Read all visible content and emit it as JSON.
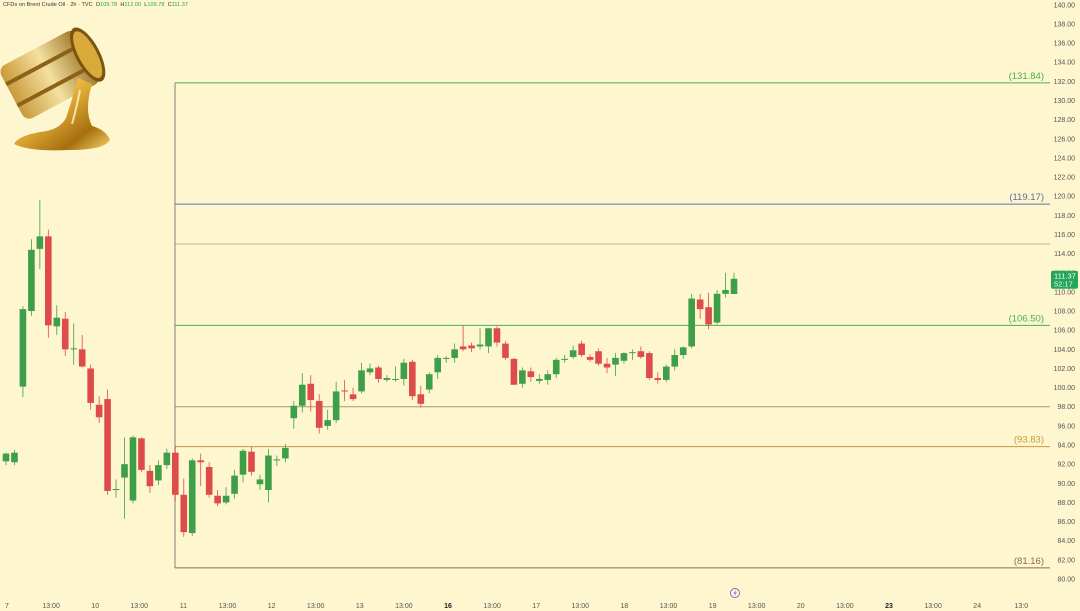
{
  "header": {
    "symbol": "CFDs on Brent Crude Oil · 2h · TVC",
    "o_label": "O",
    "o": "109.78",
    "h_label": "H",
    "h": "112.00",
    "l_label": "L",
    "l": "109.78",
    "c_label": "C",
    "c": "111.37"
  },
  "price_tag": {
    "price": "111.37",
    "timer": "52:17",
    "color": "#26a65b"
  },
  "chart_data": {
    "type": "candlestick",
    "title": "CFDs on Brent Crude Oil · 2h · TVC",
    "y_ticks": [
      "80.00",
      "82.00",
      "84.00",
      "86.00",
      "88.00",
      "90.00",
      "92.00",
      "94.00",
      "96.00",
      "98.00",
      "100.00",
      "102.00",
      "104.00",
      "106.00",
      "108.00",
      "110.00",
      "112.00",
      "114.00",
      "116.00",
      "118.00",
      "120.00",
      "122.00",
      "124.00",
      "126.00",
      "128.00",
      "130.00",
      "132.00",
      "134.00",
      "136.00",
      "138.00",
      "140.00"
    ],
    "ylim": [
      80,
      140.5
    ],
    "x_ticks": [
      {
        "label": "7",
        "bold": false
      },
      {
        "label": "13:00",
        "bold": false
      },
      {
        "label": "10",
        "bold": false
      },
      {
        "label": "13:00",
        "bold": false
      },
      {
        "label": "11",
        "bold": false
      },
      {
        "label": "13:00",
        "bold": false
      },
      {
        "label": "12",
        "bold": false
      },
      {
        "label": "13:00",
        "bold": false
      },
      {
        "label": "13",
        "bold": false
      },
      {
        "label": "13:00",
        "bold": false
      },
      {
        "label": "16",
        "bold": true
      },
      {
        "label": "13:00",
        "bold": false
      },
      {
        "label": "17",
        "bold": false
      },
      {
        "label": "13:00",
        "bold": false
      },
      {
        "label": "18",
        "bold": false
      },
      {
        "label": "13:00",
        "bold": false
      },
      {
        "label": "19",
        "bold": false
      },
      {
        "label": "13:00",
        "bold": false
      },
      {
        "label": "20",
        "bold": false
      },
      {
        "label": "13:00",
        "bold": false
      },
      {
        "label": "23",
        "bold": true
      },
      {
        "label": "13:00",
        "bold": false
      },
      {
        "label": "24",
        "bold": false
      },
      {
        "label": "13:0",
        "bold": false
      }
    ],
    "levels": [
      {
        "value": 131.84,
        "label": "(131.84)",
        "color": "#4caf50",
        "show_label": true
      },
      {
        "value": 119.17,
        "label": "(119.17)",
        "color": "#5b6fa6",
        "show_label": true
      },
      {
        "value": 115.0,
        "label": "",
        "color": "#b8b48a",
        "show_label": false
      },
      {
        "value": 106.5,
        "label": "(106.50)",
        "color": "#4caf50",
        "show_label": true
      },
      {
        "value": 98.0,
        "label": "",
        "color": "#9e9e7a",
        "show_label": false
      },
      {
        "value": 93.83,
        "label": "(93.83)",
        "color": "#c89a3c",
        "show_label": true
      },
      {
        "value": 81.16,
        "label": "(81.16)",
        "color": "#8b6a4a",
        "show_label": true
      }
    ],
    "up_color": "#3f9e48",
    "down_color": "#de4b4b",
    "candles": [
      {
        "o": 92.3,
        "h": 93.2,
        "l": 91.9,
        "c": 93.1
      },
      {
        "o": 92.2,
        "h": 93.5,
        "l": 91.9,
        "c": 93.2
      },
      {
        "o": 100.1,
        "h": 108.5,
        "l": 99.0,
        "c": 108.2
      },
      {
        "o": 108.0,
        "h": 115.5,
        "l": 107.5,
        "c": 114.4
      },
      {
        "o": 114.5,
        "h": 119.6,
        "l": 112.4,
        "c": 115.8
      },
      {
        "o": 115.8,
        "h": 116.5,
        "l": 105.2,
        "c": 106.5
      },
      {
        "o": 106.4,
        "h": 108.6,
        "l": 105.5,
        "c": 107.3
      },
      {
        "o": 107.2,
        "h": 107.9,
        "l": 103.3,
        "c": 104.0
      },
      {
        "o": 104.0,
        "h": 106.7,
        "l": 102.4,
        "c": 104.1
      },
      {
        "o": 104.0,
        "h": 105.5,
        "l": 102.1,
        "c": 102.2
      },
      {
        "o": 102.0,
        "h": 102.4,
        "l": 97.7,
        "c": 98.4
      },
      {
        "o": 98.2,
        "h": 99.1,
        "l": 96.3,
        "c": 96.9
      },
      {
        "o": 98.8,
        "h": 99.8,
        "l": 88.8,
        "c": 89.2
      },
      {
        "o": 89.3,
        "h": 90.4,
        "l": 88.5,
        "c": 89.4
      },
      {
        "o": 90.6,
        "h": 94.8,
        "l": 86.3,
        "c": 92.0
      },
      {
        "o": 88.2,
        "h": 95.0,
        "l": 87.9,
        "c": 94.8
      },
      {
        "o": 94.7,
        "h": 94.8,
        "l": 91.2,
        "c": 91.4
      },
      {
        "o": 91.3,
        "h": 91.9,
        "l": 89.0,
        "c": 89.7
      },
      {
        "o": 90.3,
        "h": 92.4,
        "l": 89.8,
        "c": 91.9
      },
      {
        "o": 91.9,
        "h": 93.6,
        "l": 91.5,
        "c": 93.2
      },
      {
        "o": 93.2,
        "h": 93.9,
        "l": 88.1,
        "c": 88.8
      },
      {
        "o": 88.8,
        "h": 90.5,
        "l": 84.4,
        "c": 84.9
      },
      {
        "o": 84.8,
        "h": 92.6,
        "l": 84.5,
        "c": 92.4
      },
      {
        "o": 92.4,
        "h": 93.1,
        "l": 89.7,
        "c": 92.2
      },
      {
        "o": 91.7,
        "h": 92.2,
        "l": 88.5,
        "c": 88.8
      },
      {
        "o": 88.7,
        "h": 89.3,
        "l": 87.6,
        "c": 87.9
      },
      {
        "o": 88.0,
        "h": 89.6,
        "l": 87.8,
        "c": 88.7
      },
      {
        "o": 88.9,
        "h": 91.4,
        "l": 88.4,
        "c": 90.8
      },
      {
        "o": 90.9,
        "h": 93.6,
        "l": 90.1,
        "c": 93.4
      },
      {
        "o": 93.3,
        "h": 93.8,
        "l": 90.8,
        "c": 91.2
      },
      {
        "o": 89.9,
        "h": 90.9,
        "l": 89.3,
        "c": 90.4
      },
      {
        "o": 89.3,
        "h": 93.6,
        "l": 88.0,
        "c": 92.9
      },
      {
        "o": 92.4,
        "h": 92.9,
        "l": 91.8,
        "c": 92.5
      },
      {
        "o": 92.6,
        "h": 94.1,
        "l": 92.2,
        "c": 93.7
      },
      {
        "o": 96.8,
        "h": 98.6,
        "l": 95.7,
        "c": 98.1
      },
      {
        "o": 98.1,
        "h": 101.5,
        "l": 97.4,
        "c": 100.3
      },
      {
        "o": 100.4,
        "h": 101.3,
        "l": 97.5,
        "c": 98.7
      },
      {
        "o": 98.6,
        "h": 99.3,
        "l": 95.2,
        "c": 95.8
      },
      {
        "o": 96.0,
        "h": 97.7,
        "l": 95.6,
        "c": 96.6
      },
      {
        "o": 96.6,
        "h": 100.6,
        "l": 96.3,
        "c": 99.6
      },
      {
        "o": 99.7,
        "h": 100.8,
        "l": 98.6,
        "c": 99.6
      },
      {
        "o": 99.3,
        "h": 100.0,
        "l": 98.6,
        "c": 98.8
      },
      {
        "o": 99.6,
        "h": 102.6,
        "l": 99.4,
        "c": 101.8
      },
      {
        "o": 101.6,
        "h": 102.5,
        "l": 101.3,
        "c": 102.0
      },
      {
        "o": 102.1,
        "h": 102.3,
        "l": 100.5,
        "c": 100.9
      },
      {
        "o": 100.8,
        "h": 101.3,
        "l": 100.6,
        "c": 101.0
      },
      {
        "o": 100.9,
        "h": 102.2,
        "l": 100.6,
        "c": 100.9
      },
      {
        "o": 100.9,
        "h": 103.0,
        "l": 100.2,
        "c": 102.6
      },
      {
        "o": 102.7,
        "h": 102.9,
        "l": 98.7,
        "c": 99.1
      },
      {
        "o": 99.3,
        "h": 100.2,
        "l": 97.9,
        "c": 98.3
      },
      {
        "o": 99.8,
        "h": 101.6,
        "l": 99.4,
        "c": 101.4
      },
      {
        "o": 101.6,
        "h": 103.4,
        "l": 100.9,
        "c": 103.1
      },
      {
        "o": 103.0,
        "h": 103.3,
        "l": 102.6,
        "c": 103.1
      },
      {
        "o": 103.1,
        "h": 104.6,
        "l": 102.6,
        "c": 104.0
      },
      {
        "o": 104.3,
        "h": 106.5,
        "l": 103.8,
        "c": 104.0
      },
      {
        "o": 104.4,
        "h": 104.7,
        "l": 103.7,
        "c": 104.1
      },
      {
        "o": 104.3,
        "h": 106.2,
        "l": 104.0,
        "c": 104.5
      },
      {
        "o": 104.3,
        "h": 106.2,
        "l": 103.6,
        "c": 106.2
      },
      {
        "o": 106.2,
        "h": 106.4,
        "l": 104.3,
        "c": 104.7
      },
      {
        "o": 104.6,
        "h": 104.9,
        "l": 102.9,
        "c": 103.1
      },
      {
        "o": 103.0,
        "h": 103.1,
        "l": 100.3,
        "c": 100.3
      },
      {
        "o": 100.4,
        "h": 102.1,
        "l": 100.0,
        "c": 101.8
      },
      {
        "o": 101.7,
        "h": 102.1,
        "l": 100.6,
        "c": 101.1
      },
      {
        "o": 100.7,
        "h": 101.4,
        "l": 100.4,
        "c": 100.9
      },
      {
        "o": 100.8,
        "h": 101.8,
        "l": 100.3,
        "c": 101.4
      },
      {
        "o": 101.4,
        "h": 103.1,
        "l": 101.0,
        "c": 102.9
      },
      {
        "o": 103.0,
        "h": 103.4,
        "l": 102.6,
        "c": 103.0
      },
      {
        "o": 103.2,
        "h": 104.4,
        "l": 103.0,
        "c": 103.9
      },
      {
        "o": 104.6,
        "h": 104.9,
        "l": 103.2,
        "c": 103.4
      },
      {
        "o": 103.2,
        "h": 103.5,
        "l": 102.7,
        "c": 102.9
      },
      {
        "o": 103.8,
        "h": 104.1,
        "l": 102.3,
        "c": 102.5
      },
      {
        "o": 102.5,
        "h": 103.1,
        "l": 101.5,
        "c": 102.1
      },
      {
        "o": 102.4,
        "h": 103.6,
        "l": 101.2,
        "c": 103.1
      },
      {
        "o": 102.8,
        "h": 103.7,
        "l": 102.5,
        "c": 103.6
      },
      {
        "o": 103.7,
        "h": 104.0,
        "l": 102.9,
        "c": 103.7
      },
      {
        "o": 103.8,
        "h": 104.3,
        "l": 103.0,
        "c": 103.2
      },
      {
        "o": 103.6,
        "h": 103.8,
        "l": 100.8,
        "c": 101.0
      },
      {
        "o": 101.0,
        "h": 101.6,
        "l": 100.4,
        "c": 100.8
      },
      {
        "o": 100.8,
        "h": 102.4,
        "l": 100.6,
        "c": 102.2
      },
      {
        "o": 102.2,
        "h": 104.0,
        "l": 101.8,
        "c": 103.4
      },
      {
        "o": 103.4,
        "h": 104.3,
        "l": 103.0,
        "c": 104.2
      },
      {
        "o": 104.3,
        "h": 109.8,
        "l": 104.1,
        "c": 109.3
      },
      {
        "o": 109.2,
        "h": 109.8,
        "l": 107.2,
        "c": 108.2
      },
      {
        "o": 108.4,
        "h": 109.9,
        "l": 106.1,
        "c": 106.6
      },
      {
        "o": 106.8,
        "h": 110.2,
        "l": 106.6,
        "c": 109.8
      },
      {
        "o": 109.8,
        "h": 112.0,
        "l": 109.4,
        "c": 110.2
      },
      {
        "o": 109.78,
        "h": 112.0,
        "l": 109.78,
        "c": 111.37
      }
    ]
  }
}
